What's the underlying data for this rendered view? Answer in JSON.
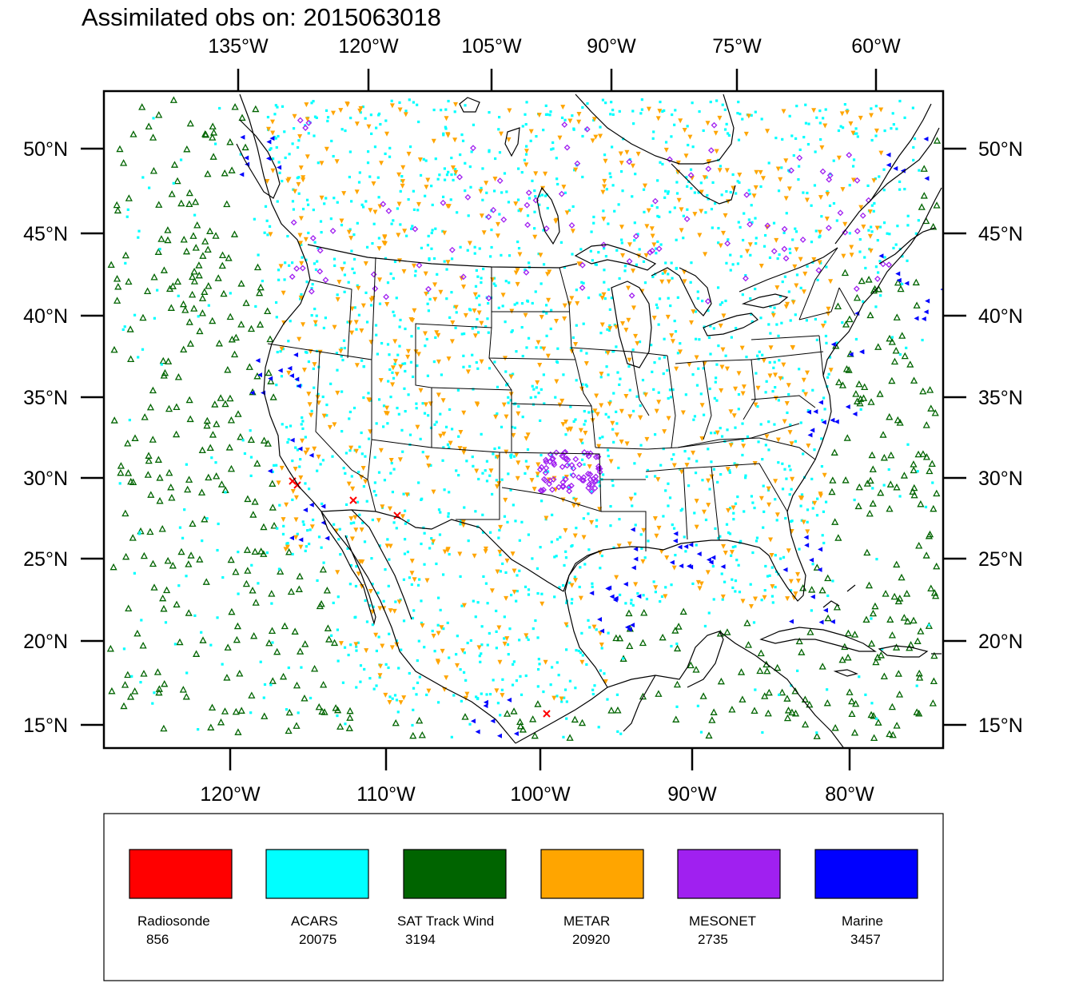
{
  "title": "Assimilated obs on: 2015063018",
  "top_lon_labels": [
    "135°W",
    "120°W",
    "105°W",
    "90°W",
    "75°W",
    "60°W"
  ],
  "bottom_lon_labels": [
    "120°W",
    "110°W",
    "100°W",
    "90°W",
    "80°W"
  ],
  "lat_labels": [
    "50°N",
    "45°N",
    "40°N",
    "35°N",
    "30°N",
    "25°N",
    "20°N",
    "15°N"
  ],
  "legend": [
    {
      "name": "Radiosonde",
      "count": "856",
      "color": "#ff0000",
      "marker": "x-icon"
    },
    {
      "name": "ACARS",
      "count": "20075",
      "color": "#00ffff",
      "marker": "square-dot-icon"
    },
    {
      "name": "SAT Track Wind",
      "count": "3194",
      "color": "#006400",
      "marker": "triangle-up-icon"
    },
    {
      "name": "METAR",
      "count": "20920",
      "color": "#ffa500",
      "marker": "triangle-down-icon"
    },
    {
      "name": "MESONET",
      "count": "2735",
      "color": "#a020f0",
      "marker": "diamond-icon"
    },
    {
      "name": "Marine",
      "count": "3457",
      "color": "#0000ff",
      "marker": "triangle-left-icon"
    }
  ],
  "colors": {
    "coastline": "#000000",
    "frame": "#000000"
  }
}
